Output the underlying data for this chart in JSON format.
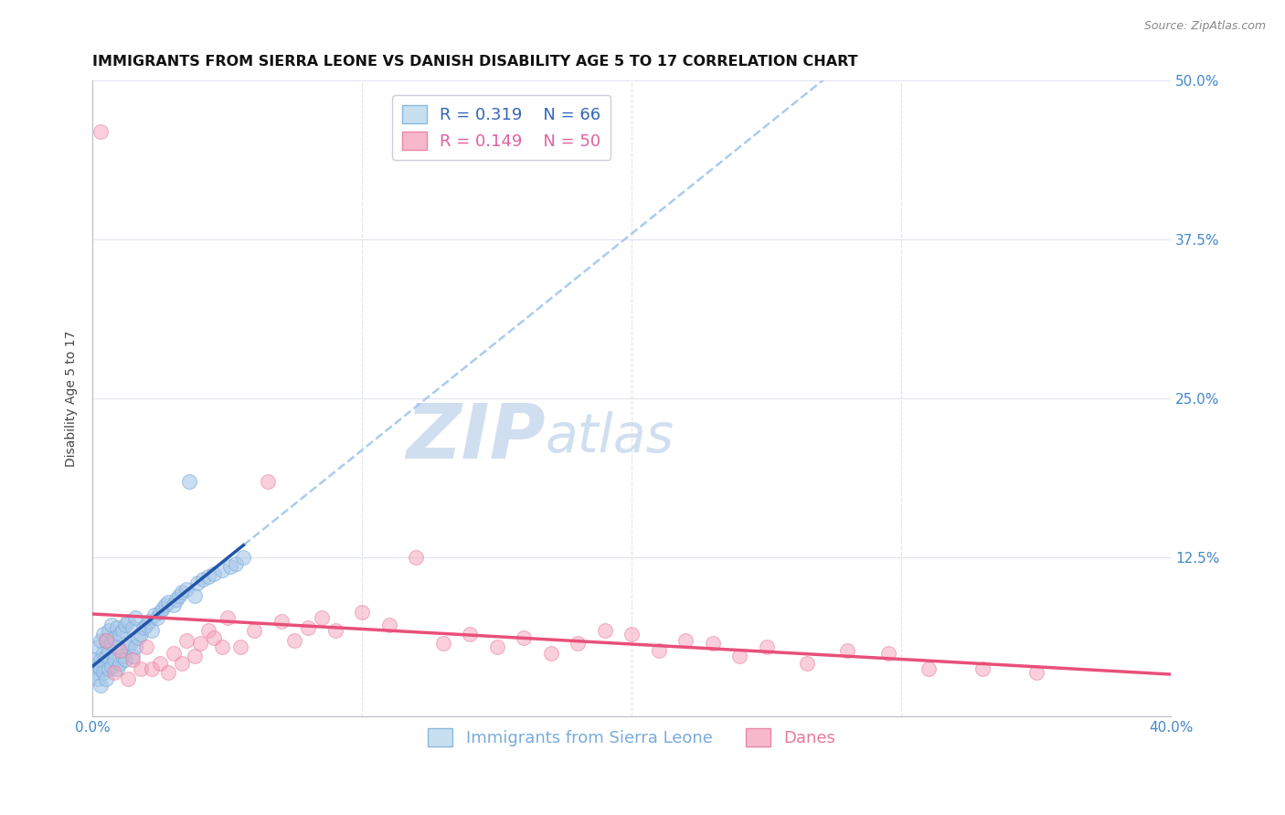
{
  "title": "IMMIGRANTS FROM SIERRA LEONE VS DANISH DISABILITY AGE 5 TO 17 CORRELATION CHART",
  "source": "Source: ZipAtlas.com",
  "ylabel": "Disability Age 5 to 17",
  "xlim": [
    0.0,
    0.4
  ],
  "ylim": [
    0.0,
    0.5
  ],
  "R_blue": 0.319,
  "N_blue": 66,
  "R_pink": 0.149,
  "N_pink": 50,
  "blue_color": "#A8C8E8",
  "blue_edge_color": "#7AABDB",
  "pink_color": "#F4A0B8",
  "pink_edge_color": "#E87898",
  "blue_line_color": "#2255AA",
  "pink_line_color": "#E8507A",
  "blue_dashed_color": "#AACCEE",
  "watermark_color": "#D0DFF0",
  "background_color": "#FFFFFF",
  "grid_color": "#E0E4EE",
  "title_fontsize": 11.5,
  "axis_label_fontsize": 10,
  "tick_fontsize": 11,
  "legend_fontsize": 13,
  "blue_scatter_x": [
    0.001,
    0.001,
    0.002,
    0.002,
    0.002,
    0.003,
    0.003,
    0.003,
    0.003,
    0.004,
    0.004,
    0.004,
    0.005,
    0.005,
    0.005,
    0.006,
    0.006,
    0.006,
    0.007,
    0.007,
    0.007,
    0.008,
    0.008,
    0.009,
    0.009,
    0.009,
    0.01,
    0.01,
    0.011,
    0.011,
    0.012,
    0.012,
    0.013,
    0.013,
    0.014,
    0.015,
    0.015,
    0.016,
    0.016,
    0.017,
    0.018,
    0.019,
    0.02,
    0.021,
    0.022,
    0.023,
    0.024,
    0.025,
    0.026,
    0.027,
    0.028,
    0.03,
    0.031,
    0.032,
    0.033,
    0.035,
    0.036,
    0.038,
    0.039,
    0.041,
    0.043,
    0.045,
    0.048,
    0.051,
    0.053,
    0.056
  ],
  "blue_scatter_y": [
    0.045,
    0.035,
    0.03,
    0.055,
    0.04,
    0.025,
    0.045,
    0.06,
    0.038,
    0.035,
    0.05,
    0.065,
    0.03,
    0.048,
    0.06,
    0.038,
    0.052,
    0.068,
    0.04,
    0.058,
    0.072,
    0.045,
    0.062,
    0.038,
    0.055,
    0.07,
    0.042,
    0.065,
    0.048,
    0.068,
    0.045,
    0.072,
    0.055,
    0.075,
    0.058,
    0.048,
    0.07,
    0.055,
    0.078,
    0.062,
    0.065,
    0.07,
    0.072,
    0.075,
    0.068,
    0.08,
    0.078,
    0.082,
    0.085,
    0.088,
    0.09,
    0.088,
    0.092,
    0.095,
    0.098,
    0.1,
    0.185,
    0.095,
    0.105,
    0.108,
    0.11,
    0.112,
    0.115,
    0.118,
    0.12,
    0.125
  ],
  "pink_scatter_x": [
    0.003,
    0.005,
    0.008,
    0.01,
    0.013,
    0.015,
    0.018,
    0.02,
    0.022,
    0.025,
    0.028,
    0.03,
    0.033,
    0.035,
    0.038,
    0.04,
    0.043,
    0.045,
    0.048,
    0.05,
    0.055,
    0.06,
    0.065,
    0.07,
    0.075,
    0.08,
    0.085,
    0.09,
    0.1,
    0.11,
    0.12,
    0.13,
    0.14,
    0.15,
    0.16,
    0.17,
    0.18,
    0.19,
    0.2,
    0.21,
    0.22,
    0.23,
    0.24,
    0.25,
    0.265,
    0.28,
    0.295,
    0.31,
    0.33,
    0.35
  ],
  "pink_scatter_y": [
    0.46,
    0.06,
    0.035,
    0.052,
    0.03,
    0.045,
    0.038,
    0.055,
    0.038,
    0.042,
    0.035,
    0.05,
    0.042,
    0.06,
    0.048,
    0.058,
    0.068,
    0.062,
    0.055,
    0.078,
    0.055,
    0.068,
    0.185,
    0.075,
    0.06,
    0.07,
    0.078,
    0.068,
    0.082,
    0.072,
    0.125,
    0.058,
    0.065,
    0.055,
    0.062,
    0.05,
    0.058,
    0.068,
    0.065,
    0.052,
    0.06,
    0.058,
    0.048,
    0.055,
    0.042,
    0.052,
    0.05,
    0.038,
    0.038,
    0.035
  ],
  "blue_line_x_start": 0.0,
  "blue_line_x_solid_end": 0.056,
  "blue_line_x_dashed_end": 0.4,
  "pink_line_x_start": 0.0,
  "pink_line_x_end": 0.4
}
